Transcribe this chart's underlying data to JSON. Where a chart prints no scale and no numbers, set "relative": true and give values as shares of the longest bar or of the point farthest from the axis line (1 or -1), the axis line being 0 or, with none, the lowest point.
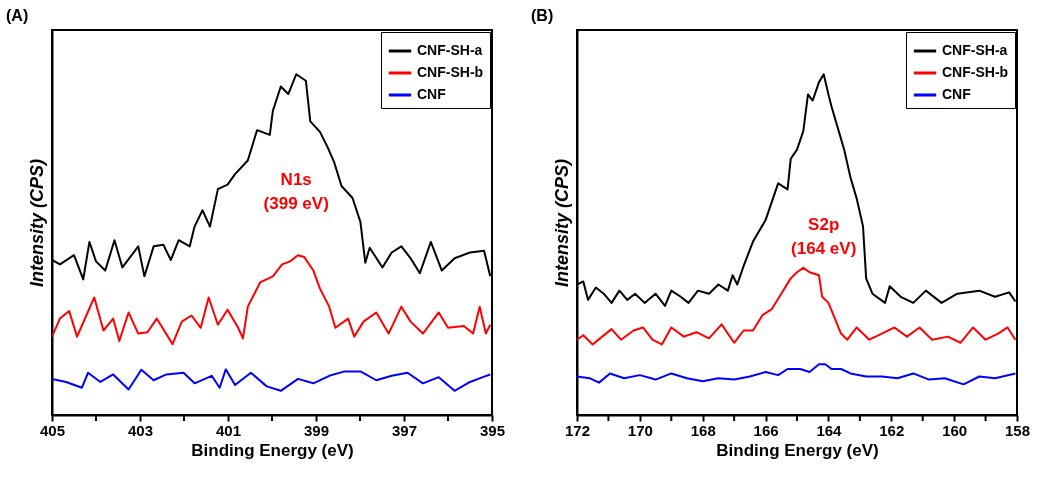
{
  "chart_data": [
    {
      "type": "line",
      "title": "(A)",
      "xlabel": "Binding Energy (eV)",
      "ylabel": "Intensity (CPS)",
      "relative": true,
      "legend": "top right",
      "xlim": [
        405,
        395
      ],
      "xticks": [
        405,
        {
          "value": 404,
          "label": null
        },
        403,
        {
          "value": 402,
          "label": null
        },
        401,
        {
          "value": 400,
          "label": null
        },
        399,
        {
          "value": 398,
          "label": null
        },
        397,
        {
          "value": 396,
          "label": null
        },
        395
      ],
      "annotations": [
        "N1s",
        "(399 eV)"
      ],
      "series": [
        {
          "name": "CNF-SH-a",
          "color": "#000000",
          "x": [
            405.0,
            404.82,
            404.5,
            404.29,
            404.15,
            404.0,
            403.79,
            403.58,
            403.4,
            403.04,
            402.9,
            402.69,
            402.47,
            402.3,
            402.12,
            401.87,
            401.76,
            401.58,
            401.41,
            401.23,
            401.01,
            400.84,
            400.55,
            400.34,
            400.05,
            399.98,
            399.8,
            399.63,
            399.45,
            399.23,
            399.13,
            398.91,
            398.74,
            398.59,
            398.42,
            398.17,
            397.99,
            397.88,
            397.78,
            397.49,
            397.28,
            397.06,
            396.85,
            396.64,
            396.39,
            396.14,
            395.85,
            395.5,
            395.18,
            395.04
          ],
          "values": [
            0.455,
            0.442,
            0.469,
            0.398,
            0.508,
            0.451,
            0.424,
            0.513,
            0.433,
            0.495,
            0.407,
            0.495,
            0.5,
            0.455,
            0.513,
            0.495,
            0.553,
            0.601,
            0.553,
            0.663,
            0.676,
            0.707,
            0.747,
            0.836,
            0.822,
            0.893,
            0.964,
            0.942,
            1,
            0.981,
            0.862,
            0.831,
            0.787,
            0.743,
            0.672,
            0.637,
            0.566,
            0.447,
            0.491,
            0.433,
            0.477,
            0.495,
            0.46,
            0.416,
            0.508,
            0.424,
            0.46,
            0.477,
            0.482,
            0.407
          ]
        },
        {
          "name": "CNF-SH-b",
          "color": "#ff0000",
          "x": [
            405.0,
            404.82,
            404.61,
            404.43,
            404.22,
            404.04,
            403.83,
            403.61,
            403.47,
            403.26,
            403.04,
            402.83,
            402.62,
            402.26,
            402.05,
            401.83,
            401.62,
            401.44,
            401.23,
            401.01,
            400.77,
            400.66,
            400.55,
            400.27,
            399.98,
            399.77,
            399.59,
            399.41,
            399.27,
            399.06,
            398.91,
            398.7,
            398.56,
            398.27,
            398.13,
            397.92,
            397.63,
            397.35,
            397.06,
            396.85,
            396.57,
            396.21,
            396.0,
            395.64,
            395.43,
            395.28,
            395.14,
            395.04
          ],
          "values": [
            0.23,
            0.283,
            0.305,
            0.23,
            0.292,
            0.345,
            0.248,
            0.283,
            0.217,
            0.301,
            0.239,
            0.243,
            0.283,
            0.208,
            0.274,
            0.292,
            0.256,
            0.345,
            0.265,
            0.309,
            0.256,
            0.225,
            0.318,
            0.389,
            0.407,
            0.442,
            0.451,
            0.469,
            0.464,
            0.424,
            0.371,
            0.318,
            0.256,
            0.283,
            0.23,
            0.274,
            0.301,
            0.239,
            0.318,
            0.274,
            0.239,
            0.301,
            0.256,
            0.261,
            0.239,
            0.318,
            0.239,
            0.265
          ]
        },
        {
          "name": "CNF",
          "color": "#0000ff",
          "x": [
            405.0,
            404.68,
            404.32,
            404.18,
            403.9,
            403.61,
            403.26,
            402.97,
            402.69,
            402.4,
            402.01,
            401.76,
            401.37,
            401.19,
            401.05,
            400.84,
            400.48,
            400.12,
            399.8,
            399.41,
            399.06,
            398.7,
            398.35,
            397.99,
            397.63,
            397.28,
            396.92,
            396.57,
            396.21,
            395.85,
            395.5,
            395.21,
            395.04
          ],
          "values": [
            0.106,
            0.097,
            0.08,
            0.124,
            0.097,
            0.119,
            0.075,
            0.133,
            0.102,
            0.119,
            0.124,
            0.093,
            0.115,
            0.08,
            0.134,
            0.088,
            0.124,
            0.084,
            0.071,
            0.106,
            0.093,
            0.115,
            0.128,
            0.128,
            0.102,
            0.115,
            0.124,
            0.093,
            0.111,
            0.071,
            0.097,
            0.111,
            0.119
          ]
        }
      ]
    },
    {
      "type": "line",
      "title": "(B)",
      "xlabel": "Binding Energy (eV)",
      "ylabel": "Intensity (CPS)",
      "relative": true,
      "legend": "top right",
      "xlim": [
        172,
        158
      ],
      "xticks": [
        172,
        {
          "value": 171,
          "label": null
        },
        170,
        {
          "value": 169,
          "label": null
        },
        168,
        {
          "value": 167,
          "label": null
        },
        166,
        {
          "value": 165,
          "label": null
        },
        164,
        {
          "value": 163,
          "label": null
        },
        162,
        {
          "value": 161,
          "label": null
        },
        160,
        {
          "value": 159,
          "label": null
        },
        158
      ],
      "annotations": [
        "S2p",
        "(164 eV)"
      ],
      "series": [
        {
          "name": "CNF-SH-a",
          "color": "#000000",
          "x": [
            172.0,
            171.8,
            171.65,
            171.4,
            171.15,
            170.9,
            170.65,
            170.4,
            170.15,
            169.85,
            169.5,
            169.2,
            169.0,
            168.7,
            168.45,
            168.15,
            167.8,
            167.5,
            167.2,
            167.05,
            166.9,
            166.7,
            166.4,
            166.0,
            165.6,
            165.3,
            165.2,
            165.0,
            164.8,
            164.65,
            164.5,
            164.3,
            164.15,
            164.0,
            163.9,
            163.7,
            163.5,
            163.3,
            163.1,
            162.9,
            162.8,
            162.6,
            162.2,
            162.05,
            161.7,
            161.3,
            160.9,
            160.4,
            159.9,
            159.2,
            158.7,
            158.25,
            158.05
          ],
          "values": [
            0.383,
            0.392,
            0.338,
            0.374,
            0.356,
            0.329,
            0.365,
            0.338,
            0.356,
            0.329,
            0.356,
            0.32,
            0.365,
            0.347,
            0.329,
            0.365,
            0.356,
            0.383,
            0.365,
            0.41,
            0.383,
            0.437,
            0.509,
            0.572,
            0.68,
            0.662,
            0.752,
            0.779,
            0.833,
            0.941,
            0.923,
            0.977,
            1,
            0.941,
            0.905,
            0.842,
            0.779,
            0.698,
            0.635,
            0.554,
            0.401,
            0.356,
            0.329,
            0.378,
            0.347,
            0.329,
            0.365,
            0.329,
            0.356,
            0.365,
            0.347,
            0.36,
            0.333
          ]
        },
        {
          "name": "CNF-SH-b",
          "color": "#ff0000",
          "x": [
            172.0,
            171.8,
            171.5,
            171.2,
            170.9,
            170.6,
            170.2,
            169.9,
            169.6,
            169.3,
            169.0,
            168.6,
            168.2,
            167.8,
            167.4,
            167.0,
            166.7,
            166.4,
            166.1,
            165.8,
            165.5,
            165.2,
            165.0,
            164.8,
            164.6,
            164.3,
            164.2,
            164.0,
            163.8,
            163.6,
            163.4,
            163.1,
            162.7,
            162.3,
            161.9,
            161.5,
            161.1,
            160.7,
            160.2,
            159.8,
            159.4,
            159.0,
            158.6,
            158.3,
            158.05
          ],
          "values": [
            0.221,
            0.234,
            0.207,
            0.23,
            0.252,
            0.221,
            0.248,
            0.257,
            0.221,
            0.207,
            0.257,
            0.23,
            0.243,
            0.225,
            0.266,
            0.212,
            0.248,
            0.248,
            0.293,
            0.311,
            0.356,
            0.401,
            0.419,
            0.432,
            0.419,
            0.41,
            0.347,
            0.329,
            0.284,
            0.239,
            0.221,
            0.257,
            0.221,
            0.239,
            0.257,
            0.23,
            0.257,
            0.221,
            0.23,
            0.212,
            0.257,
            0.221,
            0.239,
            0.257,
            0.221
          ]
        },
        {
          "name": "CNF",
          "color": "#0000ff",
          "x": [
            172.0,
            171.6,
            171.3,
            170.95,
            170.5,
            170.0,
            169.5,
            169.0,
            168.5,
            168.0,
            167.5,
            167.0,
            166.5,
            166.0,
            165.6,
            165.3,
            164.9,
            164.6,
            164.3,
            164.1,
            163.9,
            163.6,
            163.3,
            162.8,
            162.3,
            161.8,
            161.3,
            160.8,
            160.3,
            159.7,
            159.2,
            158.7,
            158.05
          ],
          "values": [
            0.113,
            0.108,
            0.095,
            0.122,
            0.108,
            0.117,
            0.104,
            0.122,
            0.108,
            0.099,
            0.108,
            0.104,
            0.113,
            0.126,
            0.117,
            0.135,
            0.135,
            0.126,
            0.149,
            0.149,
            0.135,
            0.135,
            0.122,
            0.113,
            0.113,
            0.108,
            0.122,
            0.104,
            0.108,
            0.09,
            0.113,
            0.108,
            0.122
          ]
        }
      ]
    }
  ]
}
